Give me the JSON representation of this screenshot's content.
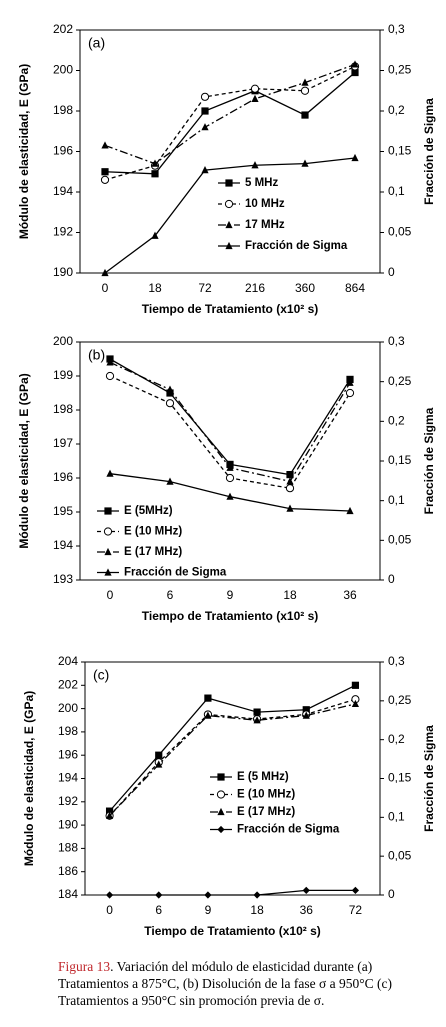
{
  "chart_data": [
    {
      "type": "line",
      "title": "(a)",
      "x_label": "Tiempo de Tratamiento (x10² s)",
      "y_label": "Módulo de elasticidad, E (GPa)",
      "y2_label": "Fracción de Sigma",
      "categories": [
        "0",
        "18",
        "72",
        "216",
        "360",
        "864"
      ],
      "ylim": [
        190,
        202
      ],
      "yticks": [
        190,
        192,
        194,
        196,
        198,
        200,
        202
      ],
      "y2lim": [
        0,
        0.3
      ],
      "y2ticks": [
        0,
        {
          "value": 0.05,
          "label": "0,05"
        },
        {
          "value": 0.1,
          "label": "0,1"
        },
        {
          "value": 0.15,
          "label": "0,15"
        },
        {
          "value": 0.2,
          "label": "0,2"
        },
        {
          "value": 0.25,
          "label": "0,25"
        },
        {
          "value": 0.3,
          "label": "0,3"
        }
      ],
      "series": [
        {
          "name": "5 MHz",
          "color": "#000000",
          "marker": "square",
          "linestyle": "solid",
          "values": [
            195.0,
            194.9,
            198.0,
            199.0,
            197.8,
            199.9
          ]
        },
        {
          "name": "10 MHz",
          "color": "#000000",
          "marker": "circle-open",
          "linestyle": "dashed",
          "values": [
            194.6,
            195.3,
            198.7,
            199.1,
            199.0,
            200.2
          ]
        },
        {
          "name": "17 MHz",
          "color": "#000000",
          "marker": "triangle",
          "linestyle": "dashdot",
          "values": [
            196.3,
            195.4,
            197.2,
            198.6,
            199.4,
            200.3
          ]
        },
        {
          "name": "Fracción de Sigma",
          "color": "#000000",
          "marker": "triangle",
          "linestyle": "solid",
          "axis": "y2",
          "values": [
            0,
            0.046,
            0.127,
            0.133,
            0.135,
            0.142
          ]
        }
      ]
    },
    {
      "type": "line",
      "title": "(b)",
      "x_label": "Tiempo de Tratamiento (x10² s)",
      "y_label": "Módulo de elasticidad, E (GPa)",
      "y2_label": "Fracción de Sigma",
      "categories": [
        "0",
        "6",
        "9",
        "18",
        "36"
      ],
      "ylim": [
        193,
        200
      ],
      "yticks": [
        193,
        194,
        195,
        196,
        197,
        198,
        199,
        200
      ],
      "y2lim": [
        0,
        0.3
      ],
      "y2ticks": [
        0,
        {
          "value": 0.05,
          "label": "0,05"
        },
        {
          "value": 0.1,
          "label": "0,1"
        },
        {
          "value": 0.15,
          "label": "0,15"
        },
        {
          "value": 0.2,
          "label": "0,2"
        },
        {
          "value": 0.25,
          "label": "0,25"
        },
        {
          "value": 0.3,
          "label": "0,3"
        }
      ],
      "series": [
        {
          "name": "E (5MHz)",
          "color": "#000000",
          "marker": "square",
          "linestyle": "solid",
          "values": [
            199.5,
            198.5,
            196.4,
            196.1,
            198.9
          ]
        },
        {
          "name": "E (10 MHz)",
          "color": "#000000",
          "marker": "circle-open",
          "linestyle": "dashed",
          "values": [
            199.0,
            198.2,
            196.0,
            195.7,
            198.5
          ]
        },
        {
          "name": "E (17 MHz)",
          "color": "#000000",
          "marker": "triangle",
          "linestyle": "dashdot",
          "values": [
            199.4,
            198.6,
            196.3,
            195.9,
            198.8
          ]
        },
        {
          "name": "Fracción de Sigma",
          "color": "#000000",
          "marker": "triangle",
          "linestyle": "solid",
          "axis": "y2",
          "values": [
            0.134,
            0.124,
            0.105,
            0.09,
            0.087
          ]
        }
      ]
    },
    {
      "type": "line",
      "title": "(c)",
      "x_label": "Tiempo de Tratamiento (x10² s)",
      "y_label": "Módulo de elasticidad, E (GPa)",
      "y2_label": "Fracción de Sigma",
      "categories": [
        "0",
        "6",
        "9",
        "18",
        "36",
        "72"
      ],
      "ylim": [
        184,
        204
      ],
      "yticks": [
        184,
        186,
        188,
        190,
        192,
        194,
        196,
        198,
        200,
        202,
        204
      ],
      "y2lim": [
        0,
        0.3
      ],
      "y2ticks": [
        0,
        {
          "value": 0.05,
          "label": "0,05"
        },
        {
          "value": 0.1,
          "label": "0,1"
        },
        {
          "value": 0.15,
          "label": "0,15"
        },
        {
          "value": 0.2,
          "label": "0,2"
        },
        {
          "value": 0.25,
          "label": "0,25"
        },
        {
          "value": 0.3,
          "label": "0,3"
        }
      ],
      "series": [
        {
          "name": "E (5 MHz)",
          "color": "#000000",
          "marker": "square",
          "linestyle": "solid",
          "values": [
            191.2,
            196.0,
            200.9,
            199.7,
            199.9,
            202.0
          ]
        },
        {
          "name": "E (10 MHz)",
          "color": "#000000",
          "marker": "circle-open",
          "linestyle": "dashed",
          "values": [
            190.8,
            195.4,
            199.5,
            199.1,
            199.5,
            200.8
          ]
        },
        {
          "name": "E (17 MHz)",
          "color": "#000000",
          "marker": "triangle",
          "linestyle": "dashdot",
          "values": [
            190.8,
            195.2,
            199.4,
            199.0,
            199.4,
            200.4
          ]
        },
        {
          "name": "Fracción de Sigma",
          "color": "#000000",
          "marker": "diamond",
          "linestyle": "solid",
          "axis": "y2",
          "values": [
            0,
            0,
            0,
            0,
            0.006,
            0.006
          ]
        }
      ]
    }
  ],
  "caption": {
    "label": "Figura 13",
    "text": ". Variación del módulo de elasticidad durante (a) Tratamientos a 875°C, (b) Disolución de la fase σ a 950°C (c) Tratamientos a 950°C sin promoción previa de σ."
  }
}
